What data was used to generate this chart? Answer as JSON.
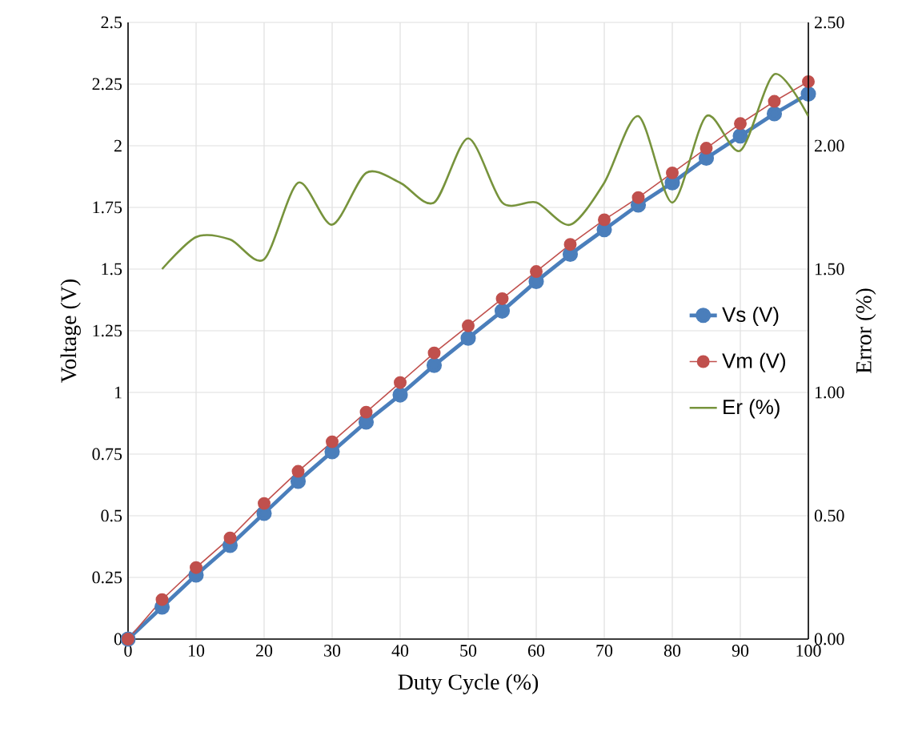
{
  "chart_data": {
    "type": "line",
    "xlabel": "Duty Cycle (%)",
    "ylabel": "Voltage (V)",
    "y2label": "Error (%)",
    "x": [
      0,
      5,
      10,
      15,
      20,
      25,
      30,
      35,
      40,
      45,
      50,
      55,
      60,
      65,
      70,
      75,
      80,
      85,
      90,
      95,
      100
    ],
    "series": [
      {
        "name": "Vs (V)",
        "color": "#4a7ebb",
        "marker": "circle",
        "values": [
          0,
          0.13,
          0.26,
          0.38,
          0.51,
          0.64,
          0.76,
          0.88,
          0.99,
          1.11,
          1.22,
          1.33,
          1.45,
          1.56,
          1.66,
          1.76,
          1.85,
          1.95,
          2.04,
          2.13,
          2.21
        ]
      },
      {
        "name": "Vm (V)",
        "color": "#c0504d",
        "marker": "circle",
        "values": [
          0,
          0.16,
          0.29,
          0.41,
          0.55,
          0.68,
          0.8,
          0.92,
          1.04,
          1.16,
          1.27,
          1.38,
          1.49,
          1.6,
          1.7,
          1.79,
          1.89,
          1.99,
          2.09,
          2.18,
          2.26
        ]
      },
      {
        "name": "Er (%)",
        "color": "#77933c",
        "marker": "none",
        "axis": "y2",
        "values": [
          null,
          1.5,
          1.63,
          1.62,
          1.54,
          1.85,
          1.68,
          1.89,
          1.85,
          1.77,
          2.03,
          1.77,
          1.77,
          1.68,
          1.85,
          2.12,
          1.77,
          2.12,
          1.98,
          2.29,
          2.12
        ]
      }
    ],
    "xlim": [
      0,
      100
    ],
    "xticks": [
      0,
      10,
      20,
      30,
      40,
      50,
      60,
      70,
      80,
      90,
      100
    ],
    "ylim": [
      0,
      2.5
    ],
    "yticks": [
      0,
      0.25,
      0.5,
      0.75,
      1,
      1.25,
      1.5,
      1.75,
      2,
      2.25,
      2.5
    ],
    "y2lim": [
      0,
      2.5
    ],
    "y2ticks": [
      {
        "value": 0,
        "label": "0.00"
      },
      {
        "value": 0.5,
        "label": "0.50"
      },
      {
        "value": 1,
        "label": "1.00"
      },
      {
        "value": 1.5,
        "label": "1.50"
      },
      {
        "value": 2,
        "label": "2.00"
      },
      {
        "value": 2.5,
        "label": "2.50"
      }
    ],
    "grid": true,
    "legend": "right"
  }
}
